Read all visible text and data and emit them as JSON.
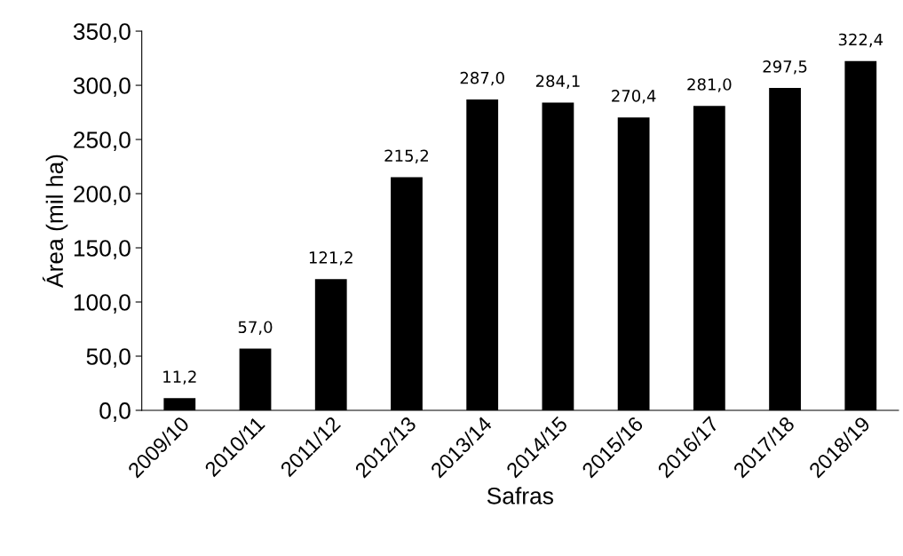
{
  "chart_data": {
    "type": "bar",
    "xlabel": "Safras",
    "ylabel": "Área (mil ha)",
    "categories": [
      "2009/10",
      "2010/11",
      "2011/12",
      "2012/13",
      "2013/14",
      "2014/15",
      "2015/16",
      "2016/17",
      "2017/18",
      "2018/19"
    ],
    "values": [
      11.2,
      57.0,
      121.2,
      215.2,
      287.0,
      284.1,
      270.4,
      281.0,
      297.5,
      322.4
    ],
    "value_labels": [
      "11,2",
      "57,0",
      "121,2",
      "215,2",
      "287,0",
      "284,1",
      "270,4",
      "281,0",
      "297,5",
      "322,4"
    ],
    "color": "#000000",
    "ylim": [
      0,
      350
    ],
    "yticks": [
      {
        "value": 0,
        "label": "0,0"
      },
      {
        "value": 50,
        "label": "50,0"
      },
      {
        "value": 100,
        "label": "100,0"
      },
      {
        "value": 150,
        "label": "150,0"
      },
      {
        "value": 200,
        "label": "200,0"
      },
      {
        "value": 250,
        "label": "250,0"
      },
      {
        "value": 300,
        "label": "300,0"
      },
      {
        "value": 350,
        "label": "350,0"
      }
    ],
    "grid": false
  }
}
